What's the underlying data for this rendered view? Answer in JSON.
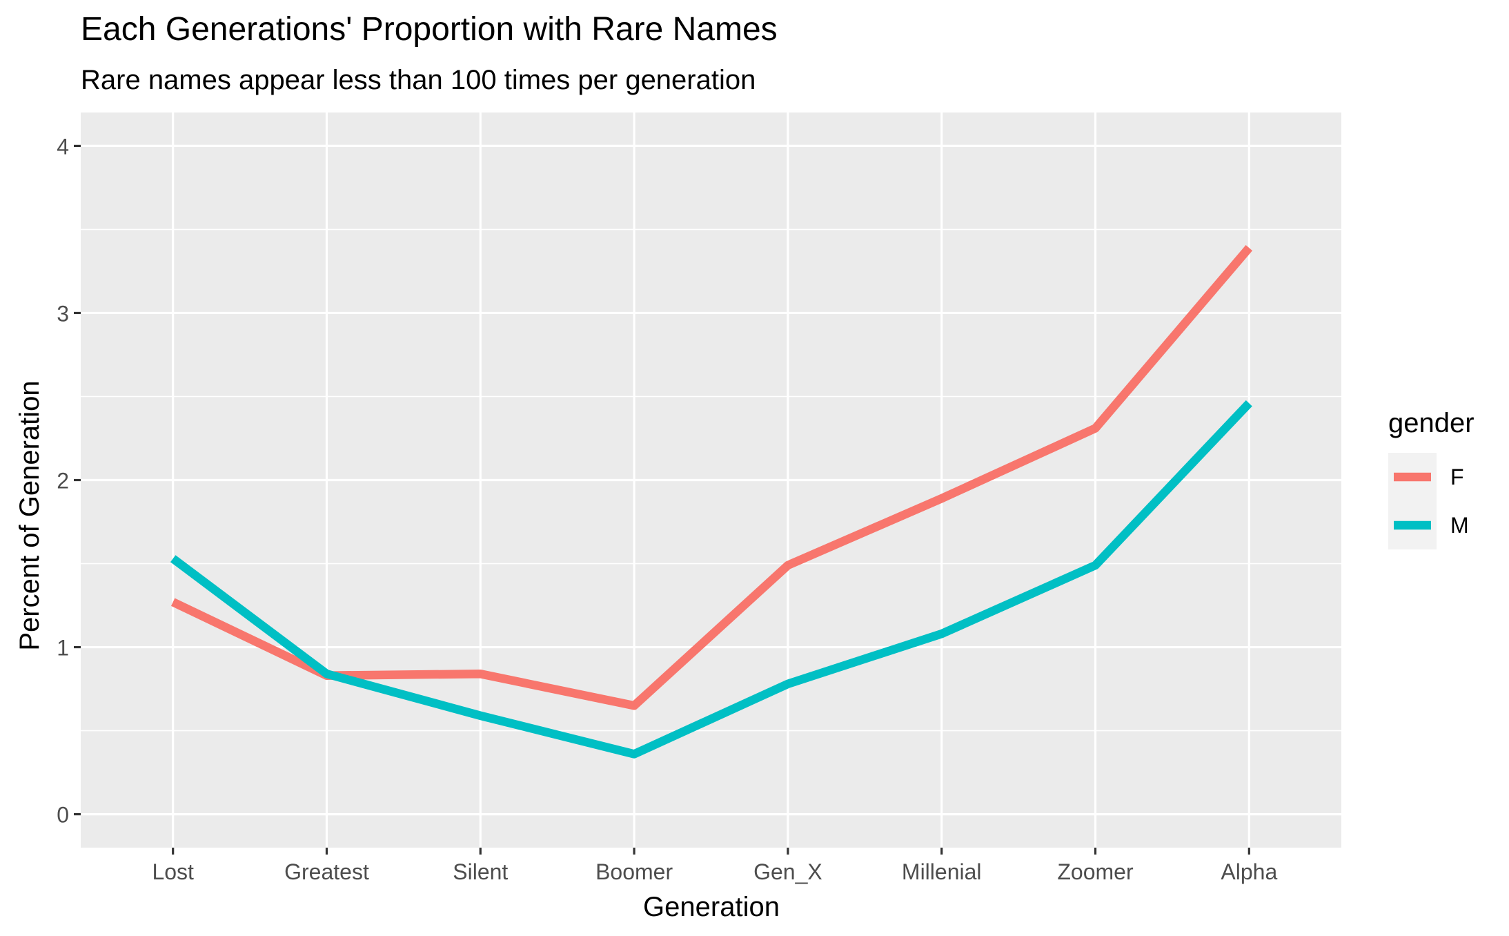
{
  "chart_data": {
    "type": "line",
    "title": "Each Generations' Proportion with Rare Names",
    "subtitle": "Rare names appear less than 100 times per generation",
    "xlabel": "Generation",
    "ylabel": "Percent of Generation",
    "categories": [
      "Lost",
      "Greatest",
      "Silent",
      "Boomer",
      "Gen_X",
      "Millenial",
      "Zoomer",
      "Alpha"
    ],
    "ylim": [
      -0.2,
      4.2
    ],
    "yticks": [
      0,
      1,
      2,
      3,
      4
    ],
    "ytick_labels": [
      "0",
      "1",
      "2",
      "3",
      "4"
    ],
    "grid": true,
    "legend": {
      "title": "gender",
      "position": "right"
    },
    "series": [
      {
        "name": "F",
        "color": "#F8766D",
        "values": [
          1.27,
          0.83,
          0.84,
          0.65,
          1.49,
          1.89,
          2.31,
          3.39
        ]
      },
      {
        "name": "M",
        "color": "#00BFC4",
        "values": [
          1.53,
          0.84,
          0.59,
          0.36,
          0.78,
          1.08,
          1.49,
          2.46
        ]
      }
    ],
    "colors": {
      "panel_background": "#EBEBEB",
      "grid_line": "#FFFFFF",
      "axis_text": "#4D4D4D",
      "axis_tick": "#333333",
      "text": "#000000",
      "legend_key_background": "#F2F2F2"
    }
  }
}
